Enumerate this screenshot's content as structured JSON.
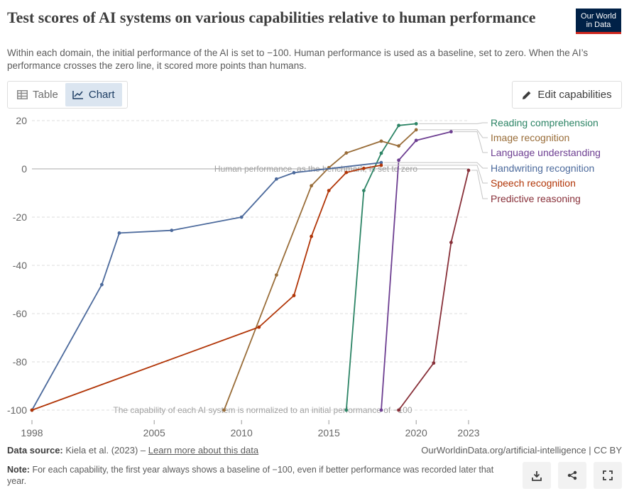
{
  "header": {
    "title": "Test scores of AI systems on various capabilities relative to human performance",
    "subtitle": "Within each domain, the initial performance of the AI is set to −100. Human performance is used as a baseline, set to zero. When the AI’s performance crosses the zero line, it scored more points than humans.",
    "logo_line1": "Our World",
    "logo_line2": "in Data"
  },
  "tabs": [
    {
      "label": "Table",
      "icon": "table-icon",
      "active": false
    },
    {
      "label": "Chart",
      "icon": "line-chart-icon",
      "active": true
    }
  ],
  "edit_button": {
    "label": "Edit capabilities",
    "icon": "pencil-icon"
  },
  "footer": {
    "source_label": "Data source:",
    "source_text": "Kiela et al. (2023) – ",
    "source_link": "Learn more about this data",
    "citation": "OurWorldinData.org/artificial-intelligence | CC BY",
    "note_label": "Note:",
    "note_text": "For each capability, the first year always shows a baseline of −100, even if better performance was recorded later that year.",
    "icons": [
      "download-icon",
      "share-icon",
      "fullscreen-icon"
    ]
  },
  "chart_data": {
    "type": "line",
    "title": "",
    "xlabel": "",
    "ylabel": "",
    "xlim": [
      1998,
      2023
    ],
    "ylim": [
      -100,
      20
    ],
    "yticks": [
      20,
      0,
      -20,
      -40,
      -60,
      -80,
      -100
    ],
    "ytick_labels": [
      "20",
      "0",
      "-20",
      "-40",
      "-60",
      "-80",
      "-100"
    ],
    "xticks": [
      1998,
      2005,
      2010,
      2015,
      2020,
      2023
    ],
    "xtick_labels": [
      "1998",
      "2005",
      "2010",
      "2015",
      "2020",
      "2023"
    ],
    "grid": true,
    "legend": "right",
    "annotations": {
      "zero_line": "Human performance, as the benchmark, is set to zero",
      "baseline_line": "The capability of each AI system is normalized to an initial performance of −100"
    },
    "series": [
      {
        "name": "Reading comprehension",
        "color": "#2c8465",
        "x": [
          2016,
          2017,
          2018,
          2019,
          2020
        ],
        "y": [
          -100,
          -9,
          6.5,
          18,
          18.7
        ]
      },
      {
        "name": "Image recognition",
        "color": "#996d39",
        "x": [
          2009,
          2012,
          2014,
          2015,
          2016,
          2018,
          2019,
          2020
        ],
        "y": [
          -100,
          -44,
          -7,
          0.5,
          6.6,
          11.5,
          9.5,
          16.2
        ]
      },
      {
        "name": "Language understanding",
        "color": "#6d3e91",
        "x": [
          2018,
          2019,
          2020,
          2022
        ],
        "y": [
          -100,
          3.6,
          11.8,
          15.4
        ]
      },
      {
        "name": "Handwriting recognition",
        "color": "#4c6a9c",
        "x": [
          1998,
          2002,
          2003,
          2006,
          2010,
          2012,
          2013,
          2018
        ],
        "y": [
          -100,
          -48,
          -26.6,
          -25.5,
          -20,
          -4.2,
          -1.6,
          2.6
        ]
      },
      {
        "name": "Speech recognition",
        "color": "#b13507",
        "x": [
          1998,
          2011,
          2013,
          2014,
          2015,
          2016,
          2017,
          2018
        ],
        "y": [
          -100,
          -65.6,
          -52.5,
          -28,
          -9,
          -1.5,
          0.2,
          1.5
        ]
      },
      {
        "name": "Predictive reasoning",
        "color": "#883039",
        "x": [
          2019,
          2021,
          2022,
          2023
        ],
        "y": [
          -100,
          -80.5,
          -30.5,
          -0.6
        ]
      }
    ]
  }
}
